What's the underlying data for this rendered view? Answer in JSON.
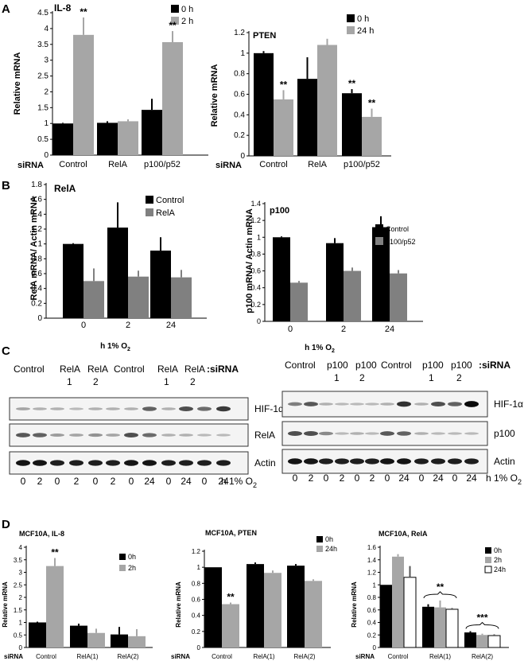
{
  "panel_labels": [
    "A",
    "B",
    "C",
    "D"
  ],
  "chart_data": [
    {
      "id": "A1",
      "type": "bar",
      "title": "IL-8",
      "ylabel": "Relative mRNA",
      "xlabel": "",
      "ylim": [
        0,
        4.5
      ],
      "yticks": [
        "0",
        "0.5",
        "1",
        "1.5",
        "2",
        "2.5",
        "3",
        "3.5",
        "4",
        "4.5"
      ],
      "xprefix": "siRNA",
      "categories": [
        "Control",
        "RelA",
        "p100/p52"
      ],
      "series": [
        {
          "name": "0 h",
          "color": "#000000",
          "values": [
            1.0,
            1.02,
            1.43
          ],
          "errors": [
            0.02,
            0.05,
            0.35
          ]
        },
        {
          "name": "2 h",
          "color": "#a6a6a6",
          "values": [
            3.8,
            1.07,
            3.57
          ],
          "errors": [
            0.55,
            0.06,
            0.35
          ]
        }
      ],
      "significance": [
        {
          "series": 1,
          "category": 0,
          "text": "**"
        },
        {
          "series": 1,
          "category": 2,
          "text": "**"
        }
      ],
      "legend_position": "top-right"
    },
    {
      "id": "A2",
      "type": "bar",
      "title": "PTEN",
      "ylabel": "Relative mRNA",
      "xlabel": "",
      "ylim": [
        0,
        1.2
      ],
      "yticks": [
        "0",
        "0.2",
        "0.4",
        "0.6",
        "0.8",
        "1",
        "1.2"
      ],
      "xprefix": "siRNA",
      "categories": [
        "Control",
        "RelA",
        "p100/p52"
      ],
      "series": [
        {
          "name": "0 h",
          "color": "#000000",
          "values": [
            1.0,
            0.75,
            0.61
          ],
          "errors": [
            0.02,
            0.21,
            0.04
          ]
        },
        {
          "name": "24 h",
          "color": "#a6a6a6",
          "values": [
            0.55,
            1.08,
            0.38
          ],
          "errors": [
            0.09,
            0.06,
            0.08
          ]
        }
      ],
      "significance": [
        {
          "series": 1,
          "category": 0,
          "text": "**"
        },
        {
          "series": 0,
          "category": 2,
          "text": "**"
        },
        {
          "series": 1,
          "category": 2,
          "text": "**"
        }
      ],
      "legend_position": "top-right"
    },
    {
      "id": "B1",
      "type": "bar",
      "title": "RelA",
      "ylabel": "RelA mRNA/ Actin mRNA",
      "xlabel": "h 1% O2",
      "ylim": [
        0,
        1.8
      ],
      "yticks": [
        "0",
        "0.2",
        "0.4",
        "0.6",
        "0.8",
        "1",
        "1.2",
        "1.4",
        "1.6",
        "1.8"
      ],
      "xprefix": "",
      "categories": [
        "0",
        "2",
        "24"
      ],
      "series": [
        {
          "name": "Control",
          "color": "#000000",
          "values": [
            1.0,
            1.22,
            0.91
          ],
          "errors": [
            0.01,
            0.34,
            0.18
          ]
        },
        {
          "name": "RelA",
          "color": "#808080",
          "values": [
            0.5,
            0.56,
            0.55
          ],
          "errors": [
            0.17,
            0.08,
            0.1
          ]
        }
      ],
      "significance": [],
      "legend_position": "top-right"
    },
    {
      "id": "B2",
      "type": "bar",
      "title": "p100",
      "ylabel": "p100 mRNA/ Actin mRNA",
      "xlabel": "h 1% O2",
      "ylim": [
        0,
        1.4
      ],
      "yticks": [
        "0",
        "0.2",
        "0.4",
        "0.6",
        "0.8",
        "1",
        "1.2",
        "1.4"
      ],
      "xprefix": "",
      "categories": [
        "0",
        "2",
        "24"
      ],
      "series": [
        {
          "name": "Control",
          "color": "#000000",
          "values": [
            1.0,
            0.93,
            1.12
          ],
          "errors": [
            0.01,
            0.06,
            0.13
          ]
        },
        {
          "name": "p100/p52",
          "color": "#808080",
          "values": [
            0.46,
            0.6,
            0.57
          ],
          "errors": [
            0.02,
            0.04,
            0.04
          ]
        }
      ],
      "significance": [],
      "legend_position": "right"
    },
    {
      "id": "D1",
      "type": "bar",
      "title": "MCF10A, IL-8",
      "ylabel": "Relative mRNA",
      "xlabel": "",
      "ylim": [
        0,
        4
      ],
      "yticks": [
        "0",
        "0.5",
        "1",
        "1.5",
        "2",
        "2.5",
        "3",
        "3.5",
        "4"
      ],
      "xprefix": "siRNA",
      "categories": [
        "Control",
        "RelA(1)",
        "RelA(2)"
      ],
      "series": [
        {
          "name": "0h",
          "color": "#000000",
          "values": [
            1.0,
            0.87,
            0.52
          ],
          "errors": [
            0.03,
            0.08,
            0.3
          ]
        },
        {
          "name": "2h",
          "color": "#a6a6a6",
          "values": [
            3.25,
            0.58,
            0.45
          ],
          "errors": [
            0.32,
            0.17,
            0.28
          ]
        }
      ],
      "significance": [
        {
          "series": 1,
          "category": 0,
          "text": "**"
        }
      ],
      "legend_position": "right"
    },
    {
      "id": "D2",
      "type": "bar",
      "title": "MCF10A, PTEN",
      "ylabel": "Relative mRNA",
      "xlabel": "",
      "ylim": [
        0,
        1.2
      ],
      "yticks": [
        "0",
        "0.2",
        "0.4",
        "0.6",
        "0.8",
        "1",
        "1.2"
      ],
      "xprefix": "siRNA",
      "categories": [
        "Control",
        "RelA(1)",
        "RelA(2)"
      ],
      "series": [
        {
          "name": "0h",
          "color": "#000000",
          "values": [
            1.0,
            1.04,
            1.02
          ],
          "errors": [
            0.0,
            0.02,
            0.02
          ]
        },
        {
          "name": "24h",
          "color": "#a6a6a6",
          "values": [
            0.54,
            0.93,
            0.83
          ],
          "errors": [
            0.02,
            0.03,
            0.02
          ]
        }
      ],
      "significance": [
        {
          "series": 1,
          "category": 0,
          "text": "**"
        }
      ],
      "legend_position": "top-right"
    },
    {
      "id": "D3",
      "type": "bar",
      "title": "MCF10A, RelA",
      "ylabel": "Relative mRNA",
      "xlabel": "",
      "ylim": [
        0,
        1.6
      ],
      "yticks": [
        "0",
        "0.2",
        "0.4",
        "0.6",
        "0.8",
        "1",
        "1.2",
        "1.4",
        "1.6"
      ],
      "xprefix": "siRNA",
      "categories": [
        "Control",
        "RelA(1)",
        "RelA(2)"
      ],
      "series": [
        {
          "name": "0h",
          "color": "#000000",
          "values": [
            1.0,
            0.65,
            0.24
          ],
          "errors": [
            0.0,
            0.04,
            0.02
          ]
        },
        {
          "name": "2h",
          "color": "#a6a6a6",
          "values": [
            1.45,
            0.64,
            0.2
          ],
          "errors": [
            0.04,
            0.11,
            0.02
          ]
        },
        {
          "name": "24h",
          "color": "#ffffff",
          "values": [
            1.12,
            0.61,
            0.19
          ],
          "errors": [
            0.18,
            0.02,
            0.02
          ]
        }
      ],
      "significance": [
        {
          "bracket_category": 1,
          "text": "**"
        },
        {
          "bracket_category": 2,
          "text": "***"
        }
      ],
      "legend_position": "top-right"
    }
  ],
  "blots": {
    "left": {
      "header": [
        "Control",
        "RelA",
        "RelA",
        "Control",
        "RelA",
        "RelA",
        ":siRNA"
      ],
      "subheader": [
        "1",
        "2",
        "1",
        "2"
      ],
      "rows": [
        "HIF-1α",
        "RelA",
        "Actin"
      ],
      "hours": [
        "0",
        "2",
        "0",
        "2",
        "0",
        "2",
        "0",
        "24",
        "0",
        "24",
        "0",
        "24"
      ],
      "hours_unit": "h 1% O",
      "hours_sub": "2"
    },
    "right": {
      "header": [
        "Control",
        "p100",
        "p100",
        "Control",
        "p100",
        "p100",
        ":siRNA"
      ],
      "subheader": [
        "1",
        "2",
        "1",
        "2"
      ],
      "rows": [
        "HIF-1α",
        "p100",
        "Actin"
      ],
      "hours": [
        "0",
        "2",
        "0",
        "2",
        "0",
        "2",
        "0",
        "24",
        "0",
        "24",
        "0",
        "24"
      ],
      "hours_unit": "h 1% O",
      "hours_sub": "2"
    }
  }
}
